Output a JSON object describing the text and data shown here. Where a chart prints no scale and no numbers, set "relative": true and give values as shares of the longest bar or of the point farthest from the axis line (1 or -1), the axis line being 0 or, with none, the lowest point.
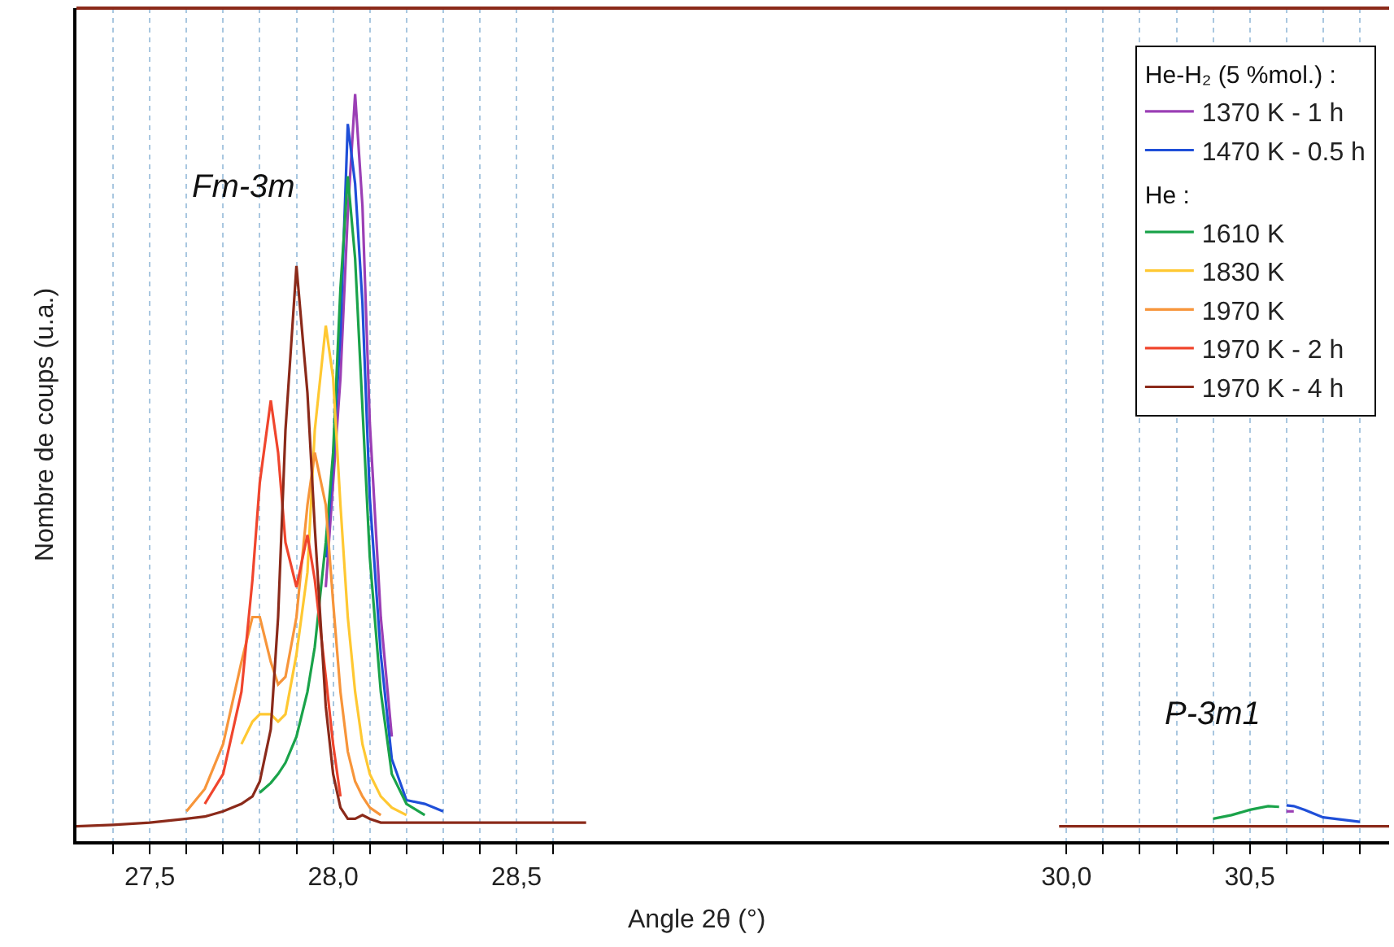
{
  "chart_data": {
    "type": "line",
    "relative": true,
    "ylabel": "Nombre de coups (u.a.)",
    "xlabel": "Angle 2θ (°)",
    "grid": "x",
    "legend": "top right",
    "legend_title": "He-H₂ (5 %mol.) :",
    "xlim": [
      27.3,
      30.88
    ],
    "xticks": [
      {
        "value": 27.4,
        "label": null
      },
      {
        "value": 27.5,
        "label": "27,5"
      },
      {
        "value": 27.6,
        "label": null
      },
      {
        "value": 27.7,
        "label": null
      },
      {
        "value": 27.8,
        "label": null
      },
      {
        "value": 27.9,
        "label": null
      },
      {
        "value": 28.0,
        "label": "28,0"
      },
      {
        "value": 28.1,
        "label": null
      },
      {
        "value": 28.2,
        "label": null
      },
      {
        "value": 28.3,
        "label": null
      },
      {
        "value": 28.4,
        "label": null
      },
      {
        "value": 28.5,
        "label": "28,5"
      },
      {
        "value": 28.6,
        "label": null
      },
      {
        "value": 30.0,
        "label": "30,0"
      },
      {
        "value": 30.1,
        "label": null
      },
      {
        "value": 30.2,
        "label": null
      },
      {
        "value": 30.3,
        "label": null
      },
      {
        "value": 30.4,
        "label": null
      },
      {
        "value": 30.5,
        "label": "30,5"
      },
      {
        "value": 30.6,
        "label": null
      },
      {
        "value": 30.7,
        "label": null
      },
      {
        "value": 30.8,
        "label": null
      }
    ],
    "annotations": [
      "He :",
      "Fm-3m",
      "P-3m1"
    ],
    "series": [
      {
        "name": "1370 K - 1 h",
        "color": "#9b3fb5",
        "x": [
          27.98,
          28.0,
          28.02,
          28.04,
          28.06,
          28.08,
          28.1,
          28.13,
          28.16,
          29.3,
          30.6,
          30.62
        ],
        "values": [
          0.34,
          0.48,
          0.62,
          0.84,
          1.0,
          0.85,
          0.56,
          0.3,
          0.14,
          null,
          0.04,
          0.04
        ]
      },
      {
        "name": "1470 K - 0.5 h",
        "color": "#1f4fd8",
        "x": [
          27.98,
          28.0,
          28.02,
          28.04,
          28.06,
          28.08,
          28.1,
          28.13,
          28.16,
          28.2,
          28.25,
          28.3,
          29.3,
          30.6,
          30.62,
          30.65,
          30.7,
          30.8
        ],
        "values": [
          0.38,
          0.51,
          0.68,
          0.96,
          0.88,
          0.72,
          0.46,
          0.25,
          0.11,
          0.055,
          0.05,
          0.04,
          null,
          0.048,
          0.047,
          0.042,
          0.032,
          0.026
        ]
      },
      {
        "name": "1610 K",
        "color": "#1aa34a",
        "x": [
          27.8,
          27.83,
          27.85,
          27.87,
          27.9,
          27.93,
          27.95,
          27.98,
          28.0,
          28.02,
          28.04,
          28.06,
          28.08,
          28.1,
          28.13,
          28.16,
          28.2,
          28.25,
          29.3,
          30.4,
          30.45,
          30.5,
          30.55,
          30.58
        ],
        "values": [
          0.065,
          0.078,
          0.09,
          0.105,
          0.14,
          0.2,
          0.26,
          0.4,
          0.52,
          0.74,
          0.89,
          0.78,
          0.58,
          0.38,
          0.2,
          0.09,
          0.05,
          0.035,
          null,
          0.03,
          0.035,
          0.042,
          0.047,
          0.046
        ]
      },
      {
        "name": "1830 K",
        "color": "#ffc832",
        "x": [
          27.75,
          27.78,
          27.8,
          27.83,
          27.85,
          27.87,
          27.9,
          27.93,
          27.95,
          27.98,
          28.0,
          28.02,
          28.04,
          28.06,
          28.08,
          28.1,
          28.13,
          28.16,
          28.2
        ],
        "values": [
          0.13,
          0.16,
          0.17,
          0.17,
          0.16,
          0.17,
          0.25,
          0.36,
          0.55,
          0.69,
          0.62,
          0.45,
          0.3,
          0.2,
          0.13,
          0.09,
          0.06,
          0.045,
          0.035
        ]
      },
      {
        "name": "1970 K",
        "color": "#f7953a",
        "x": [
          27.6,
          27.65,
          27.7,
          27.75,
          27.78,
          27.8,
          27.83,
          27.85,
          27.87,
          27.9,
          27.93,
          27.95,
          27.98,
          28.0,
          28.02,
          28.04,
          28.06,
          28.08,
          28.1,
          28.13
        ],
        "values": [
          0.04,
          0.07,
          0.13,
          0.24,
          0.3,
          0.3,
          0.24,
          0.21,
          0.22,
          0.3,
          0.45,
          0.52,
          0.45,
          0.32,
          0.2,
          0.12,
          0.08,
          0.06,
          0.045,
          0.035
        ]
      },
      {
        "name": "1970 K - 2 h",
        "color": "#f0452d",
        "x": [
          27.65,
          27.7,
          27.75,
          27.78,
          27.8,
          27.83,
          27.85,
          27.87,
          27.9,
          27.93,
          27.95,
          27.98,
          28.0,
          28.02
        ],
        "values": [
          0.05,
          0.09,
          0.2,
          0.35,
          0.48,
          0.59,
          0.52,
          0.4,
          0.34,
          0.41,
          0.35,
          0.22,
          0.13,
          0.06
        ]
      },
      {
        "name": "1970 K - 4 h",
        "color": "#8b2a1a",
        "x": [
          27.3,
          27.4,
          27.5,
          27.6,
          27.65,
          27.7,
          27.75,
          27.78,
          27.8,
          27.83,
          27.85,
          27.87,
          27.9,
          27.93,
          27.95,
          27.98,
          28.0,
          28.02,
          28.04,
          28.06,
          28.08,
          28.1,
          28.13,
          28.16,
          28.2,
          28.25,
          28.3,
          28.4,
          28.5,
          28.6,
          28.69,
          29.3,
          29.98,
          30.2,
          30.5,
          30.88
        ],
        "values": [
          0.02,
          0.022,
          0.025,
          0.03,
          0.033,
          0.04,
          0.05,
          0.06,
          0.08,
          0.15,
          0.3,
          0.55,
          0.77,
          0.6,
          0.42,
          0.18,
          0.09,
          0.045,
          0.03,
          0.03,
          0.035,
          0.03,
          0.025,
          0.025,
          0.025,
          0.025,
          0.025,
          0.025,
          0.025,
          0.025,
          0.025,
          null,
          0.02,
          0.02,
          0.02,
          0.02
        ]
      }
    ]
  }
}
